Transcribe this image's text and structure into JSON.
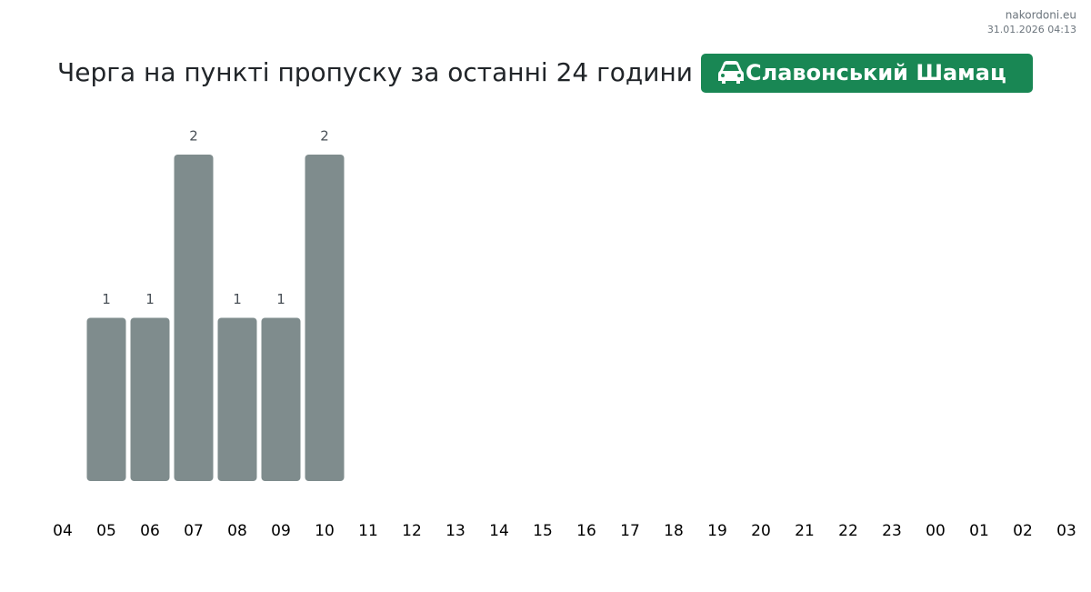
{
  "source": "nakordoni.eu",
  "timestamp": "31.01.2026 04:13",
  "chart_data": {
    "type": "bar",
    "title": "Черга на пункті пропуску за останні 24 години",
    "badge": "Славонський Шамац",
    "categories": [
      "04",
      "05",
      "06",
      "07",
      "08",
      "09",
      "10",
      "11",
      "12",
      "13",
      "14",
      "15",
      "16",
      "17",
      "18",
      "19",
      "20",
      "21",
      "22",
      "23",
      "00",
      "01",
      "02",
      "03"
    ],
    "values": [
      null,
      1,
      1,
      2,
      1,
      1,
      2,
      null,
      null,
      null,
      null,
      null,
      null,
      null,
      null,
      null,
      null,
      null,
      null,
      null,
      null,
      null,
      null,
      null
    ],
    "color": "#7f8c8d",
    "badge_color": "#198754",
    "ylim": [
      0,
      2
    ]
  }
}
